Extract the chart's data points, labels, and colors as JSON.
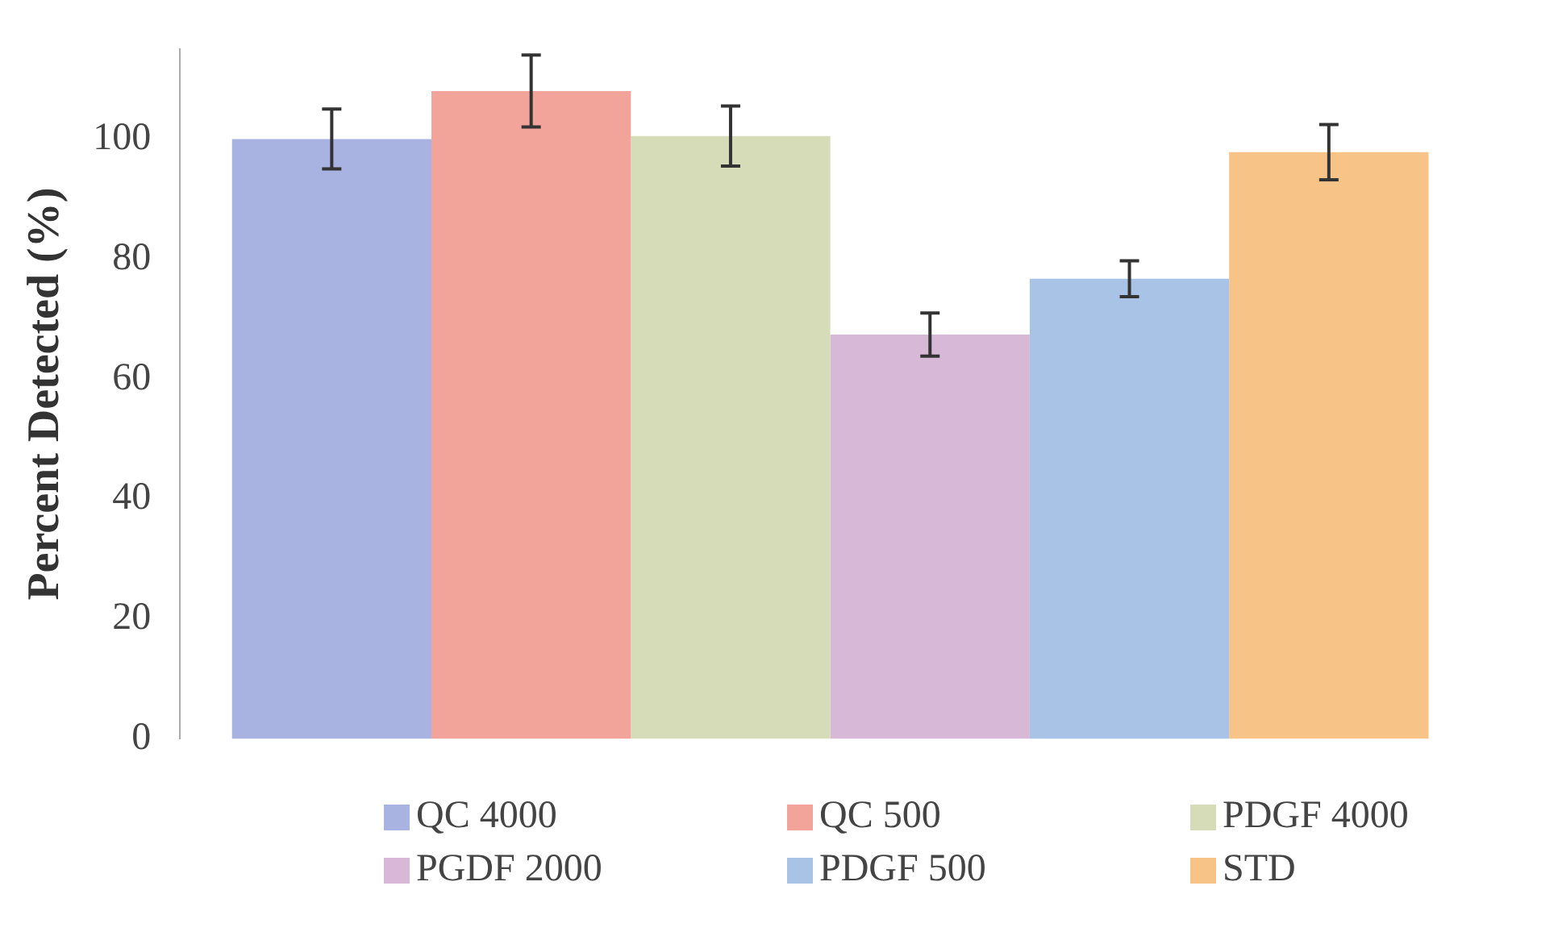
{
  "chart_data": {
    "type": "bar",
    "ylabel": "Percent Detected (%)",
    "categories": [
      null
    ],
    "series": [
      {
        "name": "QC 4000",
        "color": "#a9b3e2",
        "values": [
          100
        ],
        "errors": [
          5
        ]
      },
      {
        "name": "QC 500",
        "color": "#f2a49a",
        "values": [
          108
        ],
        "errors": [
          6
        ]
      },
      {
        "name": "PDGF 4000",
        "color": "#d6dcb8",
        "values": [
          100.5
        ],
        "errors": [
          5
        ]
      },
      {
        "name": "PGDF 2000",
        "color": "#d7b8d6",
        "values": [
          67.4
        ],
        "errors": [
          3.6
        ]
      },
      {
        "name": "PDGF 500",
        "color": "#a9c3e6",
        "values": [
          76.7
        ],
        "errors": [
          3
        ]
      },
      {
        "name": "STD",
        "color": "#f8c386",
        "values": [
          97.8
        ],
        "errors": [
          4.6
        ]
      }
    ],
    "ylim": [
      0,
      115
    ],
    "yticks": [
      0,
      20,
      40,
      60,
      80,
      100
    ],
    "grid": false,
    "legend": "bottom"
  }
}
